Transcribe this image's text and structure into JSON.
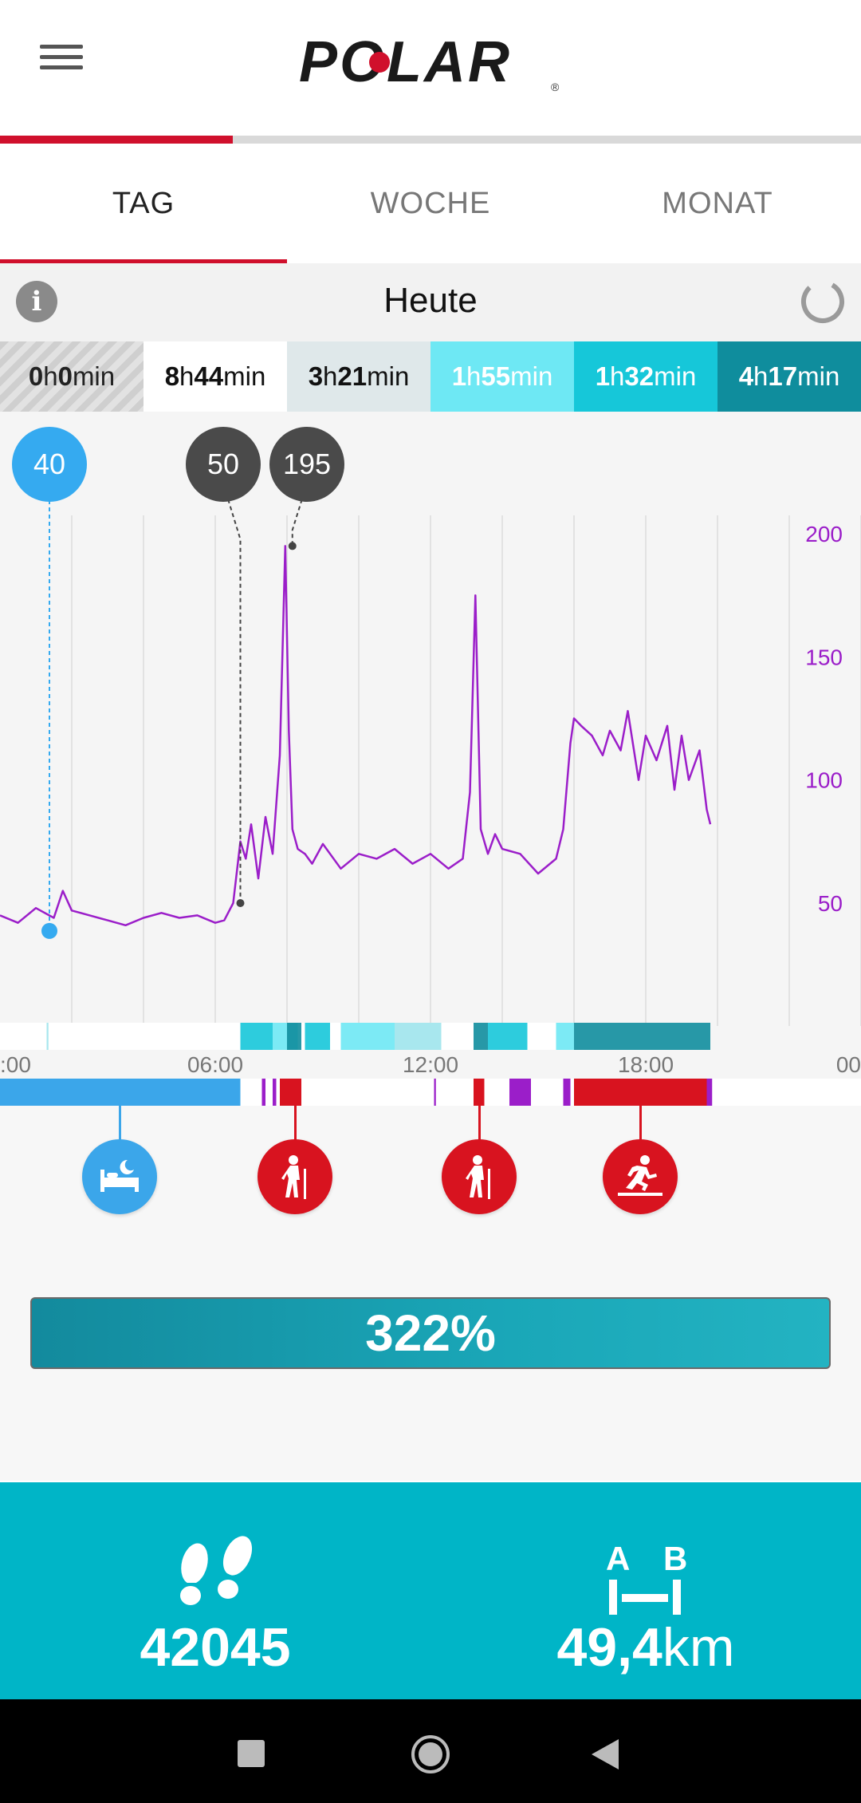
{
  "header": {
    "brand": "POLAR",
    "menu_icon": "hamburger-icon",
    "accent": "#d0102c"
  },
  "tabs": [
    {
      "label": "TAG",
      "active": true
    },
    {
      "label": "WOCHE",
      "active": false
    },
    {
      "label": "MONAT",
      "active": false
    }
  ],
  "date": {
    "label": "Heute",
    "info_icon": "info-icon",
    "sync_icon": "sync-icon"
  },
  "zones": [
    {
      "h": "0",
      "h_unit": "h",
      "m": "0",
      "m_unit": "min",
      "bg": "#d0d0d0",
      "fg": "#222"
    },
    {
      "h": "8",
      "h_unit": "h",
      "m": "44",
      "m_unit": "min",
      "bg": "#ffffff",
      "fg": "#111"
    },
    {
      "h": "3",
      "h_unit": "h",
      "m": "21",
      "m_unit": "min",
      "bg": "#dfe8ea",
      "fg": "#111"
    },
    {
      "h": "1",
      "h_unit": "h",
      "m": "55",
      "m_unit": "min",
      "bg": "#6ee8f4",
      "fg": "#ffffff"
    },
    {
      "h": "1",
      "h_unit": "h",
      "m": "32",
      "m_unit": "min",
      "bg": "#16c7d9",
      "fg": "#ffffff"
    },
    {
      "h": "4",
      "h_unit": "h",
      "m": "17",
      "m_unit": "min",
      "bg": "#0f8d9d",
      "fg": "#ffffff"
    }
  ],
  "markers": [
    {
      "value": "40",
      "color": "#35aaf0"
    },
    {
      "value": "50",
      "color": "#4a4a4a"
    },
    {
      "value": "195",
      "color": "#4a4a4a"
    }
  ],
  "chart_data": {
    "type": "line",
    "series": [
      {
        "color": "#9b1ec9",
        "x": [
          0,
          0.5,
          1,
          1.5,
          1.75,
          2,
          2.5,
          3,
          3.5,
          4,
          4.5,
          5,
          5.5,
          6,
          6.25,
          6.5,
          6.7,
          6.85,
          7.0,
          7.2,
          7.4,
          7.6,
          7.8,
          7.95,
          8.05,
          8.15,
          8.3,
          8.5,
          8.7,
          9,
          9.5,
          10,
          10.5,
          11,
          11.5,
          12,
          12.5,
          12.9,
          13.1,
          13.25,
          13.4,
          13.6,
          13.8,
          14,
          14.5,
          15,
          15.5,
          15.7,
          15.9,
          16,
          16.2,
          16.5,
          16.8,
          17,
          17.3,
          17.5,
          17.8,
          18,
          18.3,
          18.6,
          18.8,
          19,
          19.2,
          19.5,
          19.7,
          19.8
        ],
        "y": [
          45,
          42,
          48,
          44,
          55,
          47,
          45,
          43,
          41,
          44,
          46,
          44,
          45,
          42,
          43,
          50,
          75,
          68,
          82,
          60,
          85,
          70,
          110,
          195,
          120,
          80,
          72,
          70,
          66,
          74,
          64,
          70,
          68,
          72,
          66,
          70,
          64,
          68,
          95,
          175,
          80,
          70,
          78,
          72,
          70,
          62,
          68,
          80,
          115,
          125,
          122,
          118,
          110,
          120,
          112,
          128,
          100,
          118,
          108,
          122,
          96,
          118,
          100,
          112,
          88,
          82
        ]
      }
    ],
    "x_ticks": [
      ":00",
      "06:00",
      "12:00",
      "18:00",
      "00"
    ],
    "x_tick_values": [
      0,
      6,
      12,
      18,
      24
    ],
    "xlim": [
      0,
      24
    ],
    "y_ticks": [
      200,
      150,
      100,
      50
    ],
    "ylim": [
      0,
      210
    ],
    "grid": true,
    "peak_annotations": [
      {
        "x": 1.3,
        "y": 40,
        "label": "40"
      },
      {
        "x": 6.7,
        "y": 50,
        "label": "50"
      },
      {
        "x": 8.15,
        "y": 195,
        "label": "195"
      }
    ]
  },
  "activities": [
    {
      "icon": "sleep-icon",
      "color": "#3ba6ea"
    },
    {
      "icon": "walking-icon",
      "color": "#d8131f"
    },
    {
      "icon": "walking-icon",
      "color": "#d8131f"
    },
    {
      "icon": "treadmill-running-icon",
      "color": "#d8131f"
    }
  ],
  "goal": {
    "percent": "322%",
    "percent_value": 3.22
  },
  "stats": {
    "steps_value": "42045",
    "steps_icon": "footsteps-icon",
    "distance_value": "49,4",
    "distance_unit": "km",
    "distance_icon": "distance-ab-icon",
    "distance_a": "A",
    "distance_b": "B"
  },
  "navbar": {
    "recent_icon": "recent-apps-icon",
    "home_icon": "home-icon",
    "back_icon": "back-icon"
  }
}
